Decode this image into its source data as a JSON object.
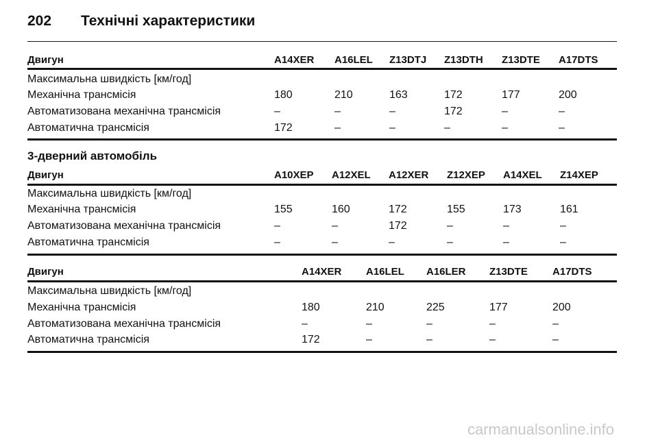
{
  "header": {
    "page_number": "202",
    "title": "Технічні характеристики"
  },
  "tables": [
    {
      "columns": [
        "Двигун",
        "A14XER",
        "A16LEL",
        "Z13DTJ",
        "Z13DTH",
        "Z13DTE",
        "A17DTS"
      ],
      "rows": [
        [
          "Максимальна швидкість [км/год]"
        ],
        [
          "Механічна трансмісія",
          "180",
          "210",
          "163",
          "172",
          "177",
          "200"
        ],
        [
          "Автоматизована механічна трансмісія",
          "–",
          "–",
          "–",
          "172",
          "–",
          "–"
        ],
        [
          "Автоматична трансмісія",
          "172",
          "–",
          "–",
          "–",
          "–",
          "–"
        ]
      ]
    },
    {
      "heading": "3-дверний автомобіль",
      "columns": [
        "Двигун",
        "A10XEP",
        "A12XEL",
        "A12XER",
        "Z12XEP",
        "A14XEL",
        "Z14XEP"
      ],
      "rows": [
        [
          "Максимальна швидкість [км/год]"
        ],
        [
          "Механічна трансмісія",
          "155",
          "160",
          "172",
          "155",
          "173",
          "161"
        ],
        [
          "Автоматизована механічна трансмісія",
          "–",
          "–",
          "172",
          "–",
          "–",
          "–"
        ],
        [
          "Автоматична трансмісія",
          "–",
          "–",
          "–",
          "–",
          "–",
          "–"
        ]
      ]
    },
    {
      "columns": [
        "Двигун",
        "A14XER",
        "A16LEL",
        "A16LER",
        "Z13DTE",
        "A17DTS"
      ],
      "rows": [
        [
          "Максимальна швидкість [км/год]"
        ],
        [
          "Механічна трансмісія",
          "180",
          "210",
          "225",
          "177",
          "200"
        ],
        [
          "Автоматизована механічна трансмісія",
          "–",
          "–",
          "–",
          "–",
          "–"
        ],
        [
          "Автоматична трансмісія",
          "172",
          "–",
          "–",
          "–",
          "–"
        ]
      ]
    }
  ],
  "watermark": "carmanualsonline.info"
}
